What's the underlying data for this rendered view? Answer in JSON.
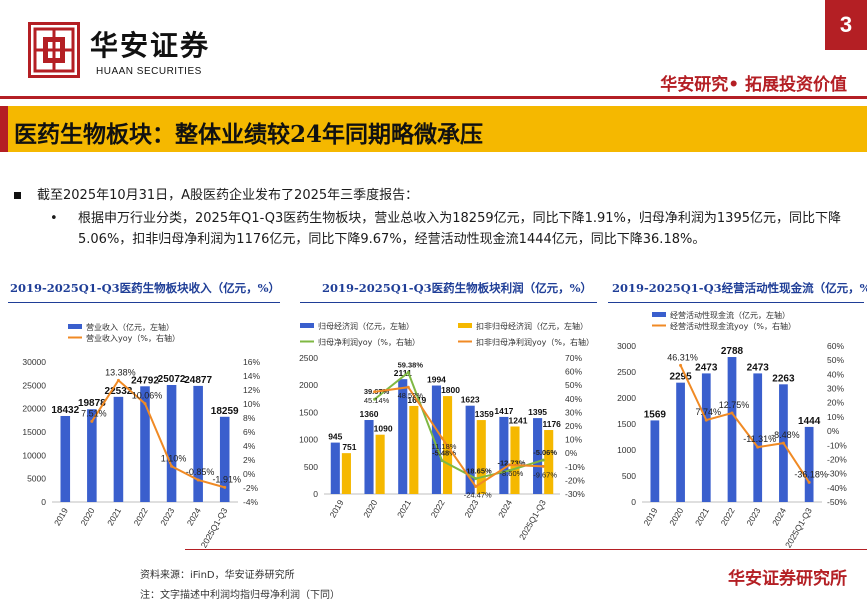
{
  "header": {
    "page_number": "3",
    "logo_name": "华安证券",
    "logo_en": "HUAAN SECURITIES",
    "slogan": "华安研究• 拓展投资价值"
  },
  "title": "医药生物板块：整体业绩较24年同期略微承压",
  "bullets": {
    "main": "截至2025年10月31日，A股医药企业发布了2025年三季度报告：",
    "dot": "•",
    "sub": "根据申万行业分类，2025年Q1-Q3医药生物板块，营业总收入为18259亿元，同比下降1.91%，归母净利润为1395亿元，同比下降5.06%，扣非归母净利润为1176亿元，同比下降9.67%，经营活动性现金流1444亿元，同比下降36.18%。"
  },
  "footer": {
    "source": "资料来源：iFinD，华安证券研究所",
    "note": "注：文字描述中利润均指归母净利润（下同）",
    "institute": "华安证券研究所"
  },
  "colors": {
    "brand_red": "#b41f24",
    "blue": "#3a5fcd",
    "orange": "#f08a24",
    "yellow": "#f5b800",
    "green": "#7fb843",
    "title_blue": "#1f3e97"
  },
  "chart_data": [
    {
      "type": "bar",
      "title": "2019-2025Q1-Q3医药生物板块收入（亿元，%）",
      "categories": [
        "2019",
        "2020",
        "2021",
        "2022",
        "2023",
        "2024",
        "2025Q1-Q3"
      ],
      "series": [
        {
          "name": "营业收入（亿元，左轴）",
          "kind": "bar",
          "axis": "left",
          "values": [
            18432,
            19878,
            22532,
            24792,
            25072,
            24877,
            18259
          ],
          "labels": [
            "18432",
            "19878",
            "22532",
            "24792",
            "25072",
            "24877",
            "18259"
          ]
        },
        {
          "name": "营业收入yoy（%，右轴）",
          "kind": "line",
          "axis": "right",
          "values": [
            null,
            7.51,
            13.38,
            10.06,
            1.1,
            -0.85,
            -1.91
          ],
          "labels": [
            "",
            "7.51%",
            "13.38%",
            "10.06%",
            "1.10%",
            "-0.85%",
            "-1.91%"
          ]
        }
      ],
      "ylim_left": [
        0,
        30000
      ],
      "left_ticks": [
        "0",
        "5000",
        "10000",
        "15000",
        "20000",
        "25000",
        "30000"
      ],
      "ylim_right": [
        -4,
        16
      ],
      "right_ticks": [
        "-4%",
        "-2%",
        "0%",
        "2%",
        "4%",
        "6%",
        "8%",
        "10%",
        "12%",
        "14%",
        "16%"
      ]
    },
    {
      "type": "bar",
      "title": "2019-2025Q1-Q3医药生物板块利润（亿元，%）",
      "categories": [
        "2019",
        "2020",
        "2021",
        "2022",
        "2023",
        "2024",
        "2025Q1-Q3"
      ],
      "series": [
        {
          "name": "归母经济润（亿元，左轴）",
          "kind": "bar",
          "axis": "left",
          "values": [
            945,
            1360,
            2111,
            1994,
            1623,
            1417,
            1395
          ],
          "labels": [
            "945",
            "1360",
            "2111",
            "1994",
            "1623",
            "1417",
            "1395"
          ]
        },
        {
          "name": "扣非归母经济润（亿元，左轴）",
          "kind": "bar",
          "axis": "left",
          "values": [
            751,
            1090,
            1619,
            1800,
            1359,
            1241,
            1176
          ],
          "labels": [
            "751",
            "1090",
            "1619",
            "1800",
            "1359",
            "1241",
            "1176"
          ]
        },
        {
          "name": "归母净利润yoy（%，右轴）",
          "kind": "line",
          "axis": "right",
          "values": [
            null,
            39.67,
            59.38,
            -5.48,
            -18.65,
            -12.73,
            -5.06
          ],
          "labels": [
            "",
            "39.67%",
            "59.38%",
            "-5.48%",
            "-18.65%",
            "-12.73%",
            "-5.06%"
          ]
        },
        {
          "name": "扣非归母净利润yoy（%，右轴）",
          "kind": "line",
          "axis": "right",
          "values": [
            null,
            45.14,
            48.52,
            11.18,
            -24.47,
            -8.6,
            -9.67
          ],
          "labels": [
            "",
            "45.14%",
            "48.52%",
            "11.18%",
            "-24.47%",
            "-8.60%",
            "-9.67%"
          ]
        }
      ],
      "ylim_left": [
        0,
        2500
      ],
      "left_ticks": [
        "0",
        "500",
        "1000",
        "1500",
        "2000",
        "2500"
      ],
      "ylim_right": [
        -30,
        70
      ],
      "right_ticks": [
        "-30%",
        "-20%",
        "-10%",
        "0%",
        "10%",
        "20%",
        "30%",
        "40%",
        "50%",
        "60%",
        "70%"
      ]
    },
    {
      "type": "bar",
      "title": "2019-2025Q1-Q3经营活动性现金流（亿元，%）",
      "categories": [
        "2019",
        "2020",
        "2021",
        "2022",
        "2023",
        "2024",
        "2025Q1-Q3"
      ],
      "series": [
        {
          "name": "经营活动性现金流（亿元，左轴）",
          "kind": "bar",
          "axis": "left",
          "values": [
            1569,
            2295,
            2473,
            2788,
            2473,
            2263,
            1444
          ],
          "labels": [
            "1569",
            "2295",
            "2473",
            "2788",
            "2473",
            "2263",
            "1444"
          ]
        },
        {
          "name": "经营活动性现金流yoy（%，右轴）",
          "kind": "line",
          "axis": "right",
          "values": [
            null,
            46.31,
            7.74,
            12.75,
            -11.31,
            -8.48,
            -36.18
          ],
          "labels": [
            "",
            "46.31%",
            "7.74%",
            "12.75%",
            "-11.31%",
            "-8.48%",
            "-36.18%"
          ]
        }
      ],
      "ylim_left": [
        0,
        3000
      ],
      "left_ticks": [
        "0",
        "500",
        "1000",
        "1500",
        "2000",
        "2500",
        "3000"
      ],
      "ylim_right": [
        -50,
        60
      ],
      "right_ticks": [
        "-50%",
        "-40%",
        "-30%",
        "-20%",
        "-10%",
        "0%",
        "10%",
        "20%",
        "30%",
        "40%",
        "50%",
        "60%"
      ]
    }
  ]
}
